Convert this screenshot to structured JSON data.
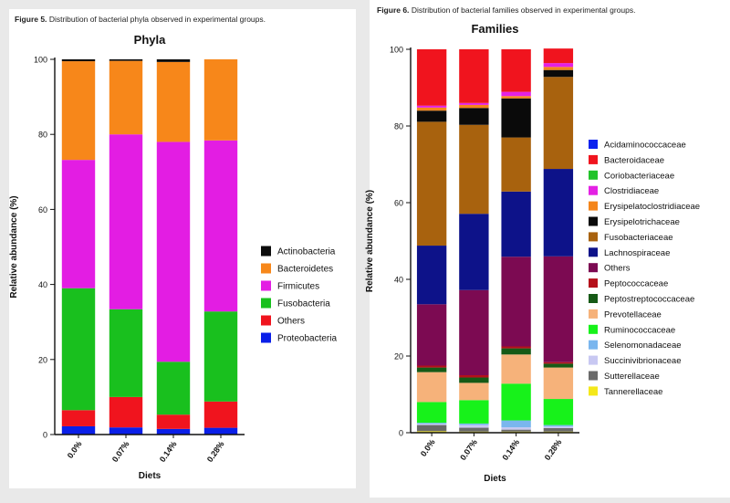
{
  "figures": [
    {
      "caption_label": "Figure 5.",
      "caption_text": "Distribution of bacterial phyla observed in experimental groups."
    },
    {
      "caption_label": "Figure 6.",
      "caption_text": "Distribution of bacterial families observed in experimental groups."
    }
  ],
  "chart_data": [
    {
      "type": "bar",
      "stacked": true,
      "title": "Phyla",
      "xlabel": "Diets",
      "ylabel": "Relative abundance (%)",
      "ylim": [
        0,
        100
      ],
      "yticks": [
        0,
        20,
        40,
        60,
        80,
        100
      ],
      "categories": [
        "0.0%",
        "0.07%",
        "0.14%",
        "0.28%"
      ],
      "legend_position": "right",
      "series": [
        {
          "name": "Proteobacteria",
          "color": "#0a1fe8",
          "values": [
            2.2,
            1.9,
            1.5,
            1.8
          ]
        },
        {
          "name": "Others",
          "color": "#f0141e",
          "values": [
            4.3,
            8.1,
            3.8,
            7.0
          ]
        },
        {
          "name": "Fusobacteria",
          "color": "#19c01e",
          "values": [
            32.5,
            23.4,
            14.1,
            24.0
          ]
        },
        {
          "name": "Firmicutes",
          "color": "#e31de3",
          "values": [
            34.2,
            46.6,
            58.6,
            45.6
          ]
        },
        {
          "name": "Bacteroidetes",
          "color": "#f7871a",
          "values": [
            26.3,
            19.6,
            21.3,
            21.6
          ]
        },
        {
          "name": "Actinobacteria",
          "color": "#0c0c0c",
          "values": [
            0.5,
            0.4,
            0.7,
            0.0
          ]
        }
      ],
      "legend_order": [
        "Actinobacteria",
        "Bacteroidetes",
        "Firmicutes",
        "Fusobacteria",
        "Others",
        "Proteobacteria"
      ]
    },
    {
      "type": "bar",
      "stacked": true,
      "title": "Families",
      "xlabel": "Diets",
      "ylabel": "Relative abundance (%)",
      "ylim": [
        0,
        100
      ],
      "yticks": [
        0,
        20,
        40,
        60,
        80,
        100
      ],
      "categories": [
        "0.0%",
        "0.07%",
        "0.14%",
        "0.28%"
      ],
      "legend_position": "right",
      "series": [
        {
          "name": "Tannerellaceae",
          "color": "#f4e81a",
          "values": [
            0.4,
            0.3,
            0.3,
            0.3
          ]
        },
        {
          "name": "Sutterellaceae",
          "color": "#6a6a6a",
          "values": [
            1.6,
            1.0,
            0.5,
            0.9
          ]
        },
        {
          "name": "Succinivibrionaceae",
          "color": "#c8c8f2",
          "values": [
            0.3,
            0.7,
            0.6,
            0.4
          ]
        },
        {
          "name": "Selenomonadaceae",
          "color": "#7ab6ee",
          "values": [
            0.3,
            0.4,
            1.8,
            0.4
          ]
        },
        {
          "name": "Ruminococcaceae",
          "color": "#17f21a",
          "values": [
            5.4,
            6.1,
            9.6,
            6.8
          ]
        },
        {
          "name": "Prevotellaceae",
          "color": "#f6b27a",
          "values": [
            7.8,
            4.5,
            7.6,
            8.2
          ]
        },
        {
          "name": "Peptostreptococcaceae",
          "color": "#165a16",
          "values": [
            1.2,
            1.4,
            1.6,
            1.0
          ]
        },
        {
          "name": "Peptococcaceae",
          "color": "#b5101a",
          "values": [
            0.5,
            0.6,
            0.5,
            0.4
          ]
        },
        {
          "name": "Others",
          "color": "#7c0a52",
          "values": [
            16.0,
            22.2,
            23.4,
            27.6
          ]
        },
        {
          "name": "Lachnospiraceae",
          "color": "#0d1289",
          "values": [
            15.3,
            19.9,
            17.0,
            22.8
          ]
        },
        {
          "name": "Fusobacteriaceae",
          "color": "#a8620e",
          "values": [
            32.3,
            23.2,
            14.1,
            24.0
          ]
        },
        {
          "name": "Erysipelotrichaceae",
          "color": "#0a0a0a",
          "values": [
            2.9,
            4.4,
            10.2,
            1.8
          ]
        },
        {
          "name": "Erysipelatoclostridiaceae",
          "color": "#f4851a",
          "values": [
            0.8,
            0.8,
            0.6,
            0.8
          ]
        },
        {
          "name": "Clostridiaceae",
          "color": "#e421e4",
          "values": [
            0.5,
            0.5,
            1.1,
            1.0
          ]
        },
        {
          "name": "Coriobacteriaceae",
          "color": "#22c32a",
          "values": [
            0.0,
            0.0,
            0.0,
            0.0
          ]
        },
        {
          "name": "Bacteroidaceae",
          "color": "#f0141e",
          "values": [
            14.7,
            14.0,
            11.1,
            3.8
          ]
        },
        {
          "name": "Acidaminococcaceae",
          "color": "#0c22ee",
          "values": [
            0.0,
            0.0,
            0.0,
            0.0
          ]
        }
      ],
      "legend_order": [
        "Acidaminococcaceae",
        "Bacteroidaceae",
        "Coriobacteriaceae",
        "Clostridiaceae",
        "Erysipelatoclostridiaceae",
        "Erysipelotrichaceae",
        "Fusobacteriaceae",
        "Lachnospiraceae",
        "Others",
        "Peptococcaceae",
        "Peptostreptococcaceae",
        "Prevotellaceae",
        "Ruminococcaceae",
        "Selenomonadaceae",
        "Succinivibrionaceae",
        "Sutterellaceae",
        "Tannerellaceae"
      ]
    }
  ]
}
